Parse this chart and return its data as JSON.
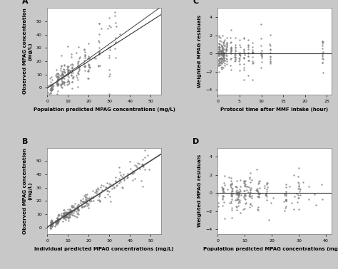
{
  "background_color": "#c8c8c8",
  "panel_bg": "#ffffff",
  "panel_A": {
    "label": "A",
    "xlabel": "Population predicted MPAG concentrations (mg/L)",
    "ylabel": "Observed MPAG concentration\n(mg/L)",
    "xlim": [
      0,
      55
    ],
    "ylim": [
      -5,
      60
    ],
    "xticks": [
      0,
      10,
      20,
      30,
      40,
      50
    ],
    "yticks": [
      0,
      10,
      20,
      30,
      40,
      50
    ],
    "x_clusters": [
      2,
      5,
      7,
      8,
      10,
      12,
      15,
      18,
      20,
      25,
      30,
      33
    ],
    "cluster_counts": [
      15,
      25,
      20,
      15,
      20,
      15,
      18,
      12,
      15,
      12,
      10,
      8
    ]
  },
  "panel_B": {
    "label": "B",
    "xlabel": "Individual predicted MPAG concentrations (mg/L)",
    "ylabel": "Observed MPAG concentration\n(mg/L)",
    "xlim": [
      0,
      55
    ],
    "ylim": [
      -5,
      60
    ],
    "xticks": [
      0,
      10,
      20,
      30,
      40,
      50
    ],
    "yticks": [
      0,
      10,
      20,
      30,
      40,
      50
    ]
  },
  "panel_C": {
    "label": "C",
    "xlabel": "Protocol time after MMF intake (hour)",
    "ylabel": "Weighted MPAG residuals",
    "xlim": [
      0,
      26
    ],
    "ylim": [
      -4.5,
      5
    ],
    "xticks": [
      0,
      5,
      10,
      15,
      20,
      25
    ],
    "yticks": [
      -4,
      -2,
      0,
      2,
      4
    ],
    "time_points": [
      0.25,
      0.5,
      0.75,
      1.0,
      1.25,
      1.5,
      2.0,
      3.0,
      4.0,
      5.0,
      6.0,
      7.0,
      8.0,
      10.0,
      12.0,
      24.0
    ],
    "hline": 0
  },
  "panel_D": {
    "label": "D",
    "xlabel": "Population predicted MPAG concentrations (mg/L)",
    "ylabel": "Weighted MPAG residuals",
    "xlim": [
      0,
      42
    ],
    "ylim": [
      -4.5,
      5
    ],
    "xticks": [
      0,
      10,
      20,
      30,
      40
    ],
    "yticks": [
      -4,
      -2,
      0,
      2,
      4
    ],
    "x_clusters": [
      2,
      5,
      7,
      8,
      10,
      12,
      15,
      18,
      25,
      30
    ],
    "hline": 0
  }
}
